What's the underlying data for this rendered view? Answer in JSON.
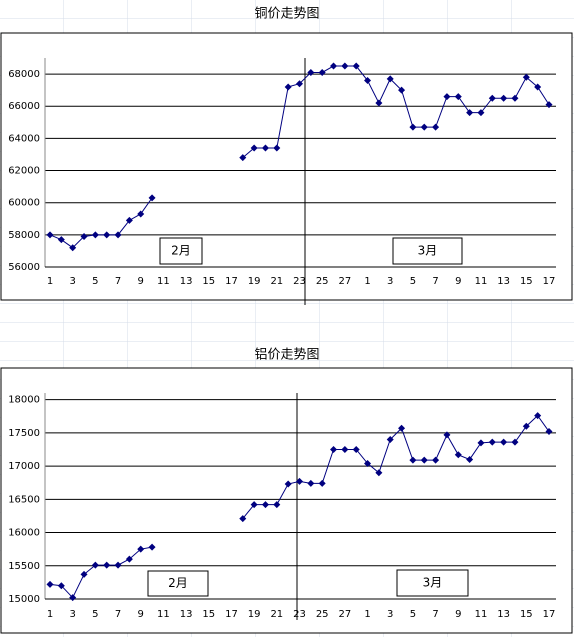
{
  "chart_data": [
    {
      "type": "line",
      "title": "铜价走势图",
      "categories": [
        "1",
        null,
        "3",
        null,
        "5",
        null,
        "7",
        null,
        "9",
        null,
        "11",
        null,
        "13",
        null,
        "15",
        null,
        "17",
        null,
        "19",
        null,
        "21",
        null,
        "23",
        null,
        "25",
        null,
        "27",
        null,
        "1",
        null,
        "3",
        null,
        "5",
        null,
        "7",
        null,
        "9",
        null,
        "11",
        null,
        "13",
        null,
        "15",
        null,
        "17"
      ],
      "series": [
        {
          "color": "#000080",
          "values": [
            58000,
            57700,
            57200,
            57900,
            58000,
            58000,
            58000,
            58900,
            59300,
            60300,
            null,
            null,
            null,
            null,
            null,
            null,
            null,
            62800,
            63400,
            63400,
            63400,
            67200,
            67400,
            68100,
            68100,
            68500,
            68500,
            68500,
            67600,
            66200,
            67700,
            67000,
            64700,
            64700,
            64700,
            66600,
            66600,
            65600,
            65600,
            66500,
            66500,
            66500,
            67800,
            67200,
            66100
          ]
        }
      ],
      "ylim": [
        56000,
        69000
      ],
      "yticks": [
        56000,
        58000,
        60000,
        62000,
        64000,
        66000,
        68000
      ],
      "grid": true,
      "annotations": [
        "2月",
        "3月"
      ]
    },
    {
      "type": "line",
      "title": "铝价走势图",
      "categories": [
        "1",
        null,
        "3",
        null,
        "5",
        null,
        "7",
        null,
        "9",
        null,
        "11",
        null,
        "13",
        null,
        "15",
        null,
        "17",
        null,
        "19",
        null,
        "21",
        null,
        "23",
        null,
        "25",
        null,
        "27",
        null,
        "1",
        null,
        "3",
        null,
        "5",
        null,
        "7",
        null,
        "9",
        null,
        "11",
        null,
        "13",
        null,
        "15",
        null,
        "17"
      ],
      "series": [
        {
          "color": "#000080",
          "values": [
            15220,
            15200,
            15020,
            15370,
            15510,
            15510,
            15510,
            15600,
            15750,
            15780,
            null,
            null,
            null,
            null,
            null,
            null,
            null,
            16210,
            16420,
            16420,
            16420,
            16730,
            16770,
            16740,
            16740,
            17250,
            17250,
            17250,
            17040,
            16900,
            17400,
            17570,
            17090,
            17090,
            17090,
            17470,
            17170,
            17100,
            17350,
            17360,
            17360,
            17360,
            17600,
            17760,
            17520
          ]
        }
      ],
      "ylim": [
        15000,
        18100
      ],
      "yticks": [
        15000,
        15500,
        16000,
        16500,
        17000,
        17500,
        18000
      ],
      "grid": true,
      "annotations": [
        "2月",
        "3月"
      ]
    }
  ]
}
